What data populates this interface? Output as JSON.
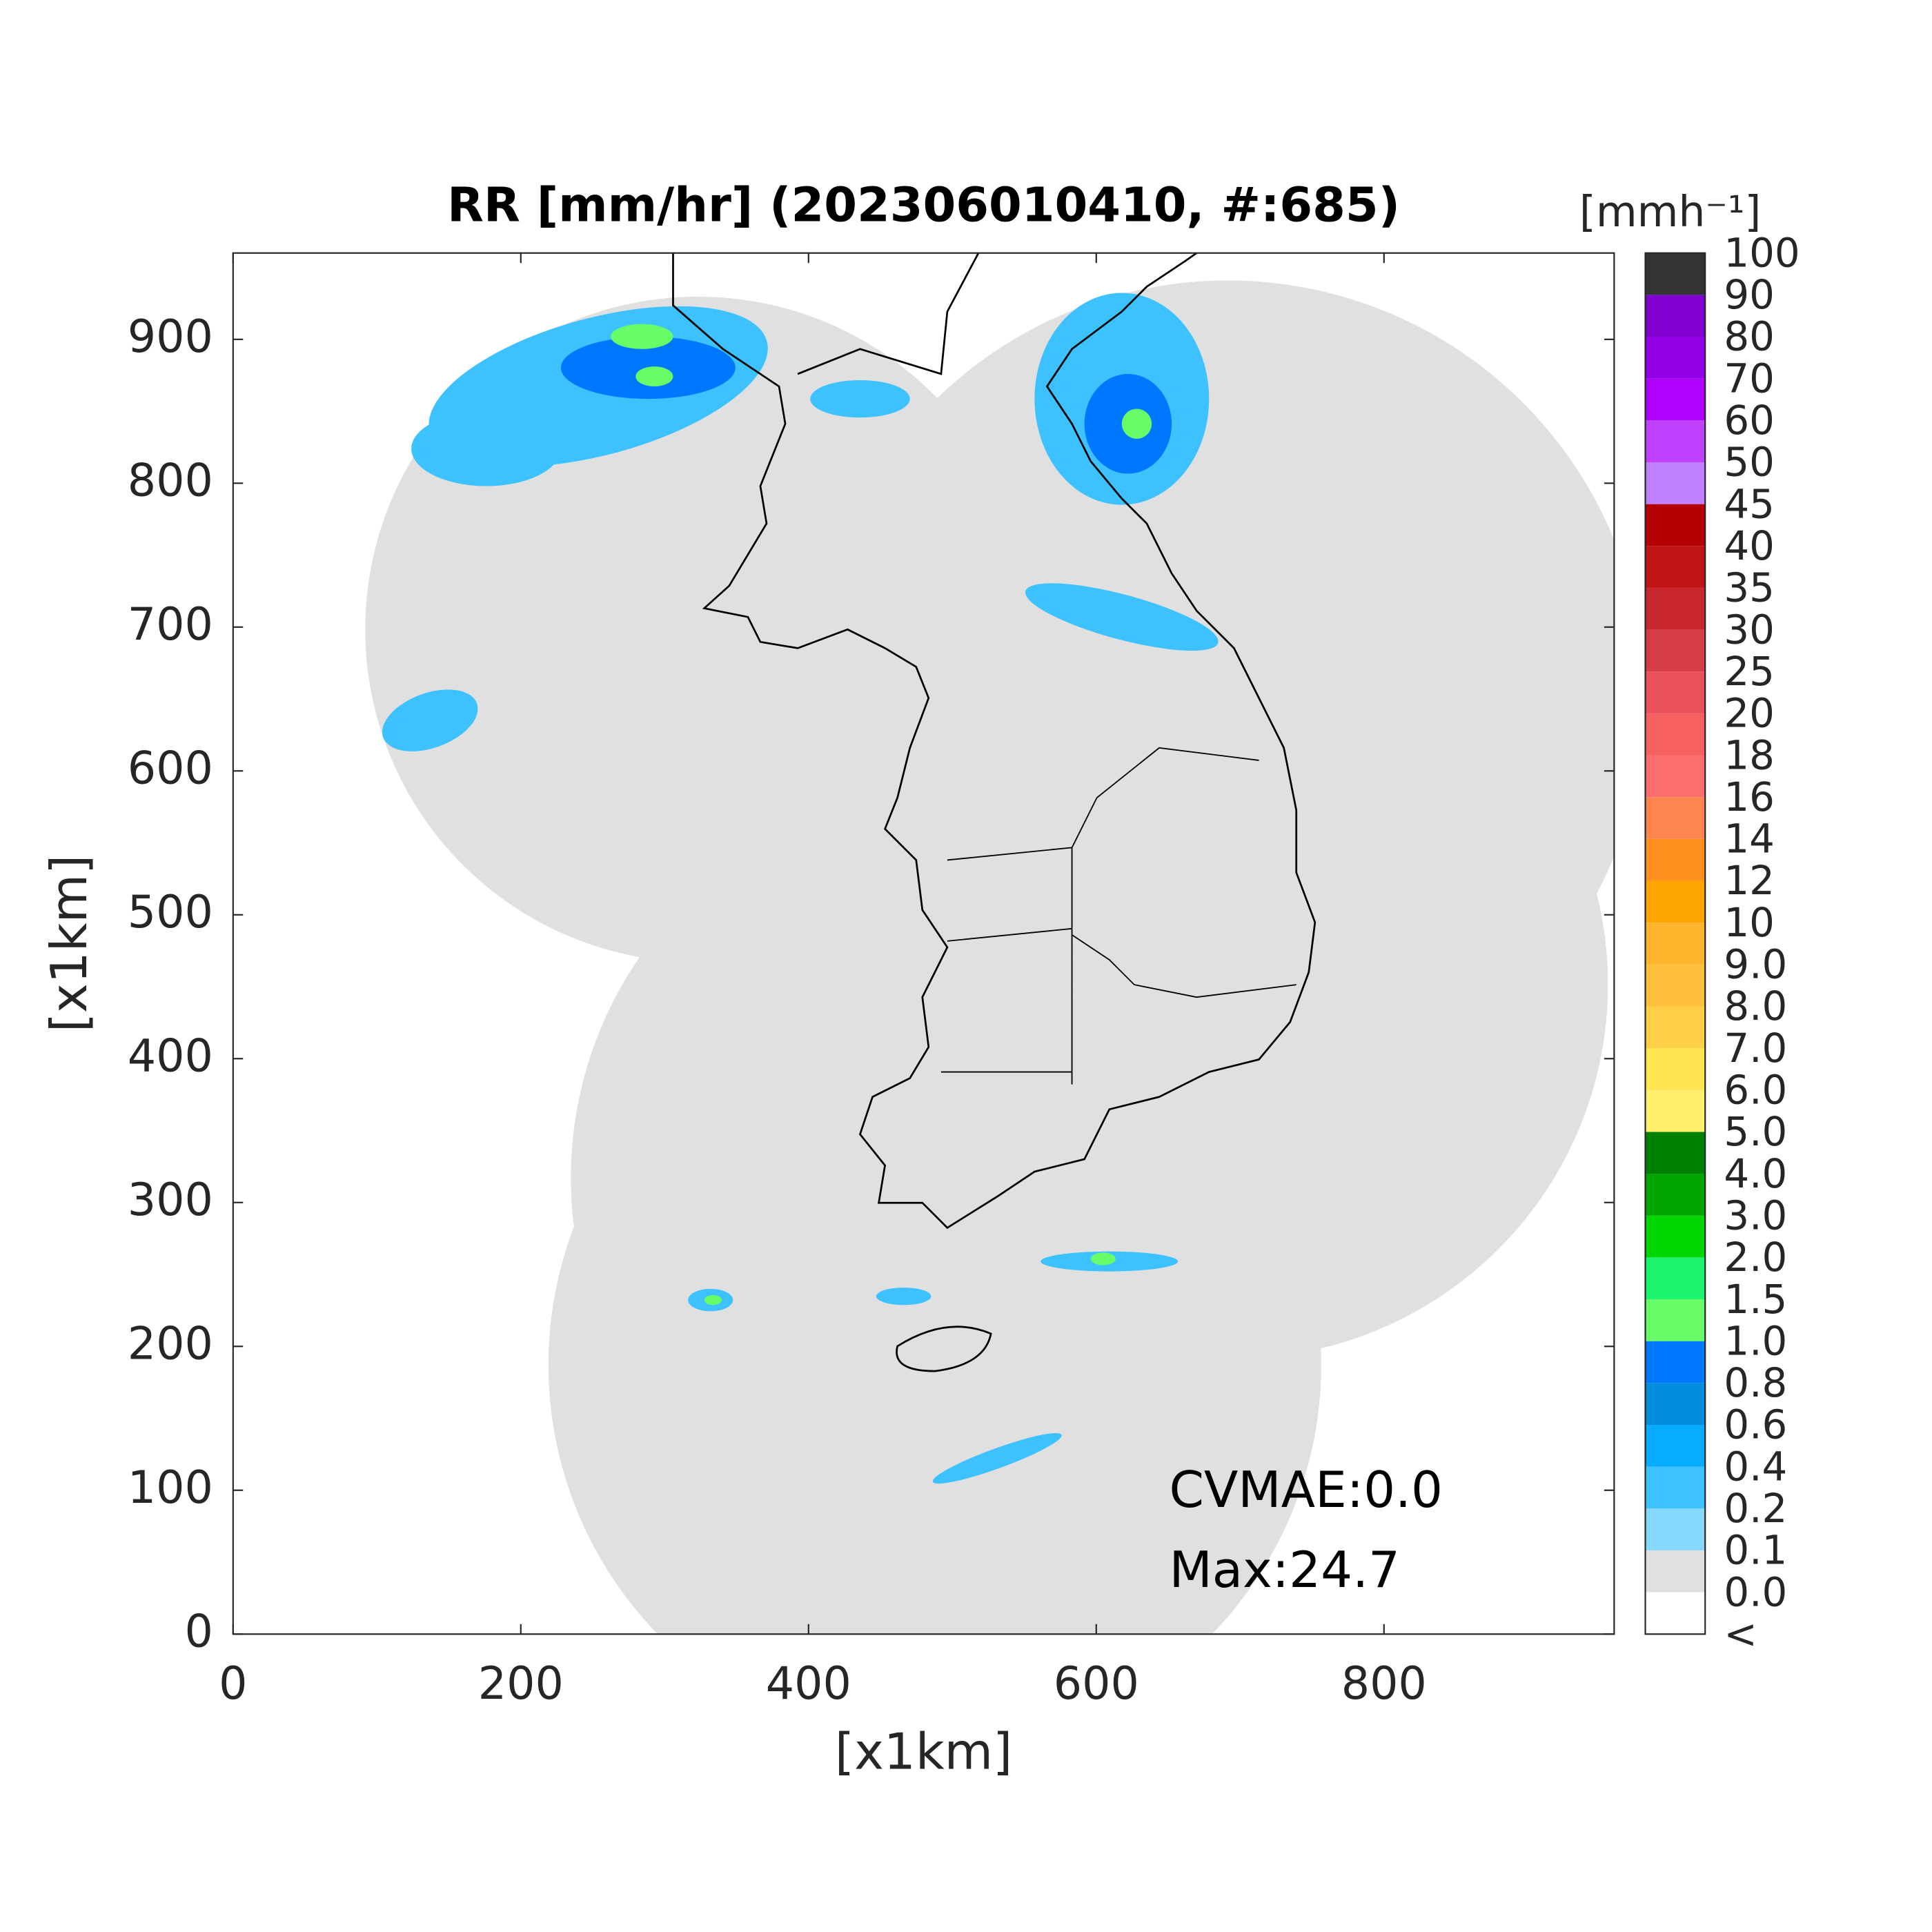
{
  "chart_data": {
    "type": "map",
    "title": "RR [mm/hr] (202306010410, #:685)",
    "x_label": "[x1km]",
    "y_label": "[x1km]",
    "xlim": [
      0,
      960
    ],
    "ylim": [
      0,
      960
    ],
    "xticks": [
      0,
      200,
      400,
      600,
      800
    ],
    "yticks": [
      0,
      100,
      200,
      300,
      400,
      500,
      600,
      700,
      800,
      900
    ],
    "annotations": [
      "CVMAE:0.0",
      "Max:24.7"
    ],
    "colorbar": {
      "label": "[mmh⁻¹]",
      "tick_labels": [
        "<",
        "0.0",
        "0.1",
        "0.2",
        "0.4",
        "0.6",
        "0.8",
        "1.0",
        "1.5",
        "2.0",
        "3.0",
        "4.0",
        "5.0",
        "6.0",
        "7.0",
        "8.0",
        "9.0",
        "10",
        "12",
        "14",
        "16",
        "18",
        "20",
        "25",
        "30",
        "35",
        "40",
        "45",
        "50",
        "60",
        "70",
        "80",
        "90",
        "100"
      ],
      "colors": [
        "#ffffff",
        "#e0e0e0",
        "#87d8ff",
        "#3ec1ff",
        "#07abff",
        "#008dde",
        "#0077ff",
        "#69fc69",
        "#1ef56e",
        "#00d500",
        "#00a400",
        "#008000",
        "#fff06e",
        "#ffe650",
        "#ffd046",
        "#ffc03c",
        "#ffb42d",
        "#ffa500",
        "#ff9020",
        "#ff8550",
        "#ff6e6e",
        "#f66160",
        "#e9505a",
        "#d63c46",
        "#c8282d",
        "#bf1414",
        "#b40000",
        "#c080ff",
        "#bf40ff",
        "#b000ff",
        "#9400e6",
        "#8000d0",
        "#333333"
      ]
    }
  }
}
